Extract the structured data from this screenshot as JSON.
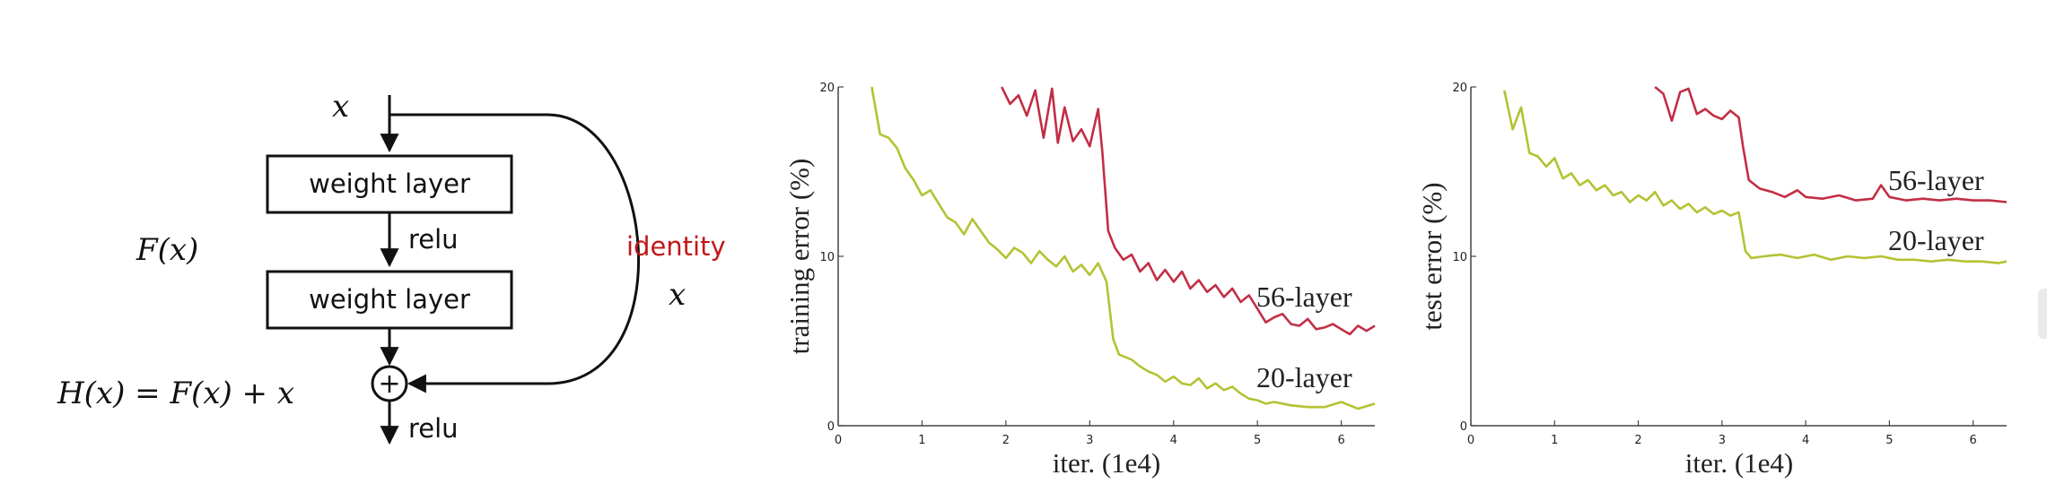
{
  "resblock": {
    "input_x": "x",
    "fx": "F(x)",
    "weight1": "weight layer",
    "weight2": "weight layer",
    "relu1": "relu",
    "relu2": "relu",
    "identity": "identity",
    "identity_x": "x",
    "hx": "H(x) = F(x) + x",
    "plus": "+",
    "colors": {
      "identity_label": "#c21717",
      "stroke": "#111111"
    }
  },
  "chart_data": [
    {
      "type": "line",
      "xlabel": "iter. (1e4)",
      "ylabel": "training error (%)",
      "xlim": [
        0,
        6.4
      ],
      "ylim": [
        0,
        20
      ],
      "x_ticks": [
        "0",
        "1",
        "2",
        "3",
        "4",
        "5",
        "6"
      ],
      "y_ticks": [
        "0",
        "10",
        "20"
      ],
      "grid": false,
      "series": [
        {
          "name": "56-layer",
          "color": "#c22e45",
          "x": [
            1.95,
            2.05,
            2.15,
            2.25,
            2.35,
            2.45,
            2.55,
            2.62,
            2.7,
            2.8,
            2.9,
            3.0,
            3.1,
            3.15,
            3.22,
            3.3,
            3.4,
            3.5,
            3.6,
            3.7,
            3.8,
            3.9,
            4.0,
            4.1,
            4.2,
            4.3,
            4.4,
            4.5,
            4.6,
            4.7,
            4.8,
            4.9,
            5.0,
            5.1,
            5.2,
            5.3,
            5.4,
            5.5,
            5.6,
            5.7,
            5.8,
            5.9,
            6.0,
            6.1,
            6.2,
            6.3,
            6.4
          ],
          "y": [
            20,
            19,
            19.5,
            18.3,
            19.8,
            17,
            19.9,
            16.7,
            18.8,
            16.8,
            17.5,
            16.5,
            18.7,
            16.2,
            11.5,
            10.5,
            9.8,
            10.1,
            9.1,
            9.6,
            8.6,
            9.2,
            8.5,
            9.1,
            8.1,
            8.6,
            7.9,
            8.3,
            7.6,
            8.1,
            7.3,
            7.7,
            6.9,
            6.1,
            6.4,
            6.6,
            6.0,
            5.9,
            6.3,
            5.7,
            5.8,
            6.0,
            5.7,
            5.4,
            5.9,
            5.6,
            5.9
          ]
        },
        {
          "name": "20-layer",
          "color": "#b4c233",
          "x": [
            0.4,
            0.5,
            0.6,
            0.7,
            0.8,
            0.9,
            1.0,
            1.1,
            1.2,
            1.3,
            1.4,
            1.5,
            1.6,
            1.7,
            1.8,
            1.9,
            2.0,
            2.1,
            2.2,
            2.3,
            2.4,
            2.5,
            2.6,
            2.7,
            2.8,
            2.9,
            3.0,
            3.1,
            3.2,
            3.28,
            3.35,
            3.5,
            3.6,
            3.7,
            3.8,
            3.9,
            4.0,
            4.1,
            4.2,
            4.3,
            4.4,
            4.5,
            4.6,
            4.7,
            4.8,
            4.9,
            5.0,
            5.1,
            5.2,
            5.4,
            5.6,
            5.8,
            6.0,
            6.2,
            6.4
          ],
          "y": [
            20,
            17.2,
            17.0,
            16.4,
            15.2,
            14.5,
            13.6,
            13.9,
            13.1,
            12.3,
            12.0,
            11.3,
            12.2,
            11.5,
            10.8,
            10.4,
            9.9,
            10.5,
            10.2,
            9.6,
            10.3,
            9.8,
            9.4,
            10.0,
            9.1,
            9.5,
            8.9,
            9.6,
            8.5,
            5.1,
            4.2,
            3.9,
            3.5,
            3.2,
            3.0,
            2.6,
            2.9,
            2.5,
            2.4,
            2.8,
            2.2,
            2.5,
            2.1,
            2.3,
            1.9,
            1.6,
            1.5,
            1.3,
            1.4,
            1.2,
            1.1,
            1.1,
            1.4,
            1.0,
            1.3
          ]
        }
      ]
    },
    {
      "type": "line",
      "xlabel": "iter. (1e4)",
      "ylabel": "test error (%)",
      "xlim": [
        0,
        6.4
      ],
      "ylim": [
        0,
        20
      ],
      "x_ticks": [
        "0",
        "1",
        "2",
        "3",
        "4",
        "5",
        "6"
      ],
      "y_ticks": [
        "0",
        "10",
        "20"
      ],
      "grid": false,
      "series": [
        {
          "name": "56-layer",
          "color": "#c22e45",
          "x": [
            2.2,
            2.3,
            2.4,
            2.5,
            2.6,
            2.7,
            2.8,
            2.9,
            3.0,
            3.1,
            3.2,
            3.25,
            3.32,
            3.45,
            3.6,
            3.75,
            3.9,
            4.0,
            4.2,
            4.4,
            4.6,
            4.8,
            4.9,
            5.0,
            5.2,
            5.4,
            5.6,
            5.8,
            6.0,
            6.2,
            6.4
          ],
          "y": [
            20,
            19.6,
            18.0,
            19.7,
            19.9,
            18.4,
            18.7,
            18.3,
            18.1,
            18.6,
            18.2,
            16.5,
            14.5,
            14.0,
            13.8,
            13.5,
            13.9,
            13.5,
            13.4,
            13.6,
            13.3,
            13.4,
            14.2,
            13.5,
            13.3,
            13.4,
            13.3,
            13.4,
            13.3,
            13.3,
            13.2
          ]
        },
        {
          "name": "20-layer",
          "color": "#b4c233",
          "x": [
            0.4,
            0.5,
            0.6,
            0.7,
            0.8,
            0.9,
            1.0,
            1.1,
            1.2,
            1.3,
            1.4,
            1.5,
            1.6,
            1.7,
            1.8,
            1.9,
            2.0,
            2.1,
            2.2,
            2.3,
            2.4,
            2.5,
            2.6,
            2.7,
            2.8,
            2.9,
            3.0,
            3.1,
            3.2,
            3.28,
            3.35,
            3.5,
            3.7,
            3.9,
            4.1,
            4.3,
            4.5,
            4.7,
            4.9,
            5.1,
            5.3,
            5.5,
            5.7,
            5.9,
            6.1,
            6.3,
            6.4
          ],
          "y": [
            19.8,
            17.5,
            18.8,
            16.1,
            15.9,
            15.3,
            15.8,
            14.6,
            14.9,
            14.2,
            14.5,
            13.9,
            14.2,
            13.6,
            13.8,
            13.2,
            13.6,
            13.3,
            13.8,
            13.0,
            13.3,
            12.8,
            13.1,
            12.6,
            12.9,
            12.5,
            12.7,
            12.4,
            12.6,
            10.3,
            9.9,
            10.0,
            10.1,
            9.9,
            10.1,
            9.8,
            10.0,
            9.9,
            10.0,
            9.8,
            9.8,
            9.7,
            9.8,
            9.7,
            9.7,
            9.6,
            9.7
          ]
        }
      ]
    }
  ]
}
